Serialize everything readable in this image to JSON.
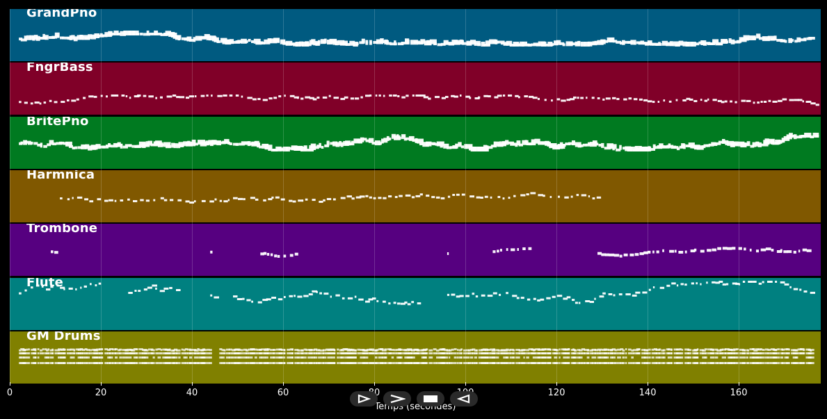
{
  "tracks": [
    {
      "name": "GrandPno",
      "color": "#005a80"
    },
    {
      "name": "FngrBass",
      "color": "#800028"
    },
    {
      "name": "BritePno",
      "color": "#007a20"
    },
    {
      "name": "Harmnica",
      "color": "#805800"
    },
    {
      "name": "Trombone",
      "color": "#560080"
    },
    {
      "name": "Flute",
      "color": "#008080"
    },
    {
      "name": "GM Drums",
      "color": "#808000"
    }
  ],
  "axis": {
    "label": "Temps (secondes)",
    "ticks": [
      "0",
      "20",
      "40",
      "60",
      "80",
      "100",
      "120",
      "140",
      "160"
    ],
    "range": [
      0,
      178
    ]
  },
  "controls": [
    {
      "name": "play-outline-icon"
    },
    {
      "name": "forward-icon"
    },
    {
      "name": "stop-icon"
    },
    {
      "name": "rewind-icon"
    }
  ]
}
